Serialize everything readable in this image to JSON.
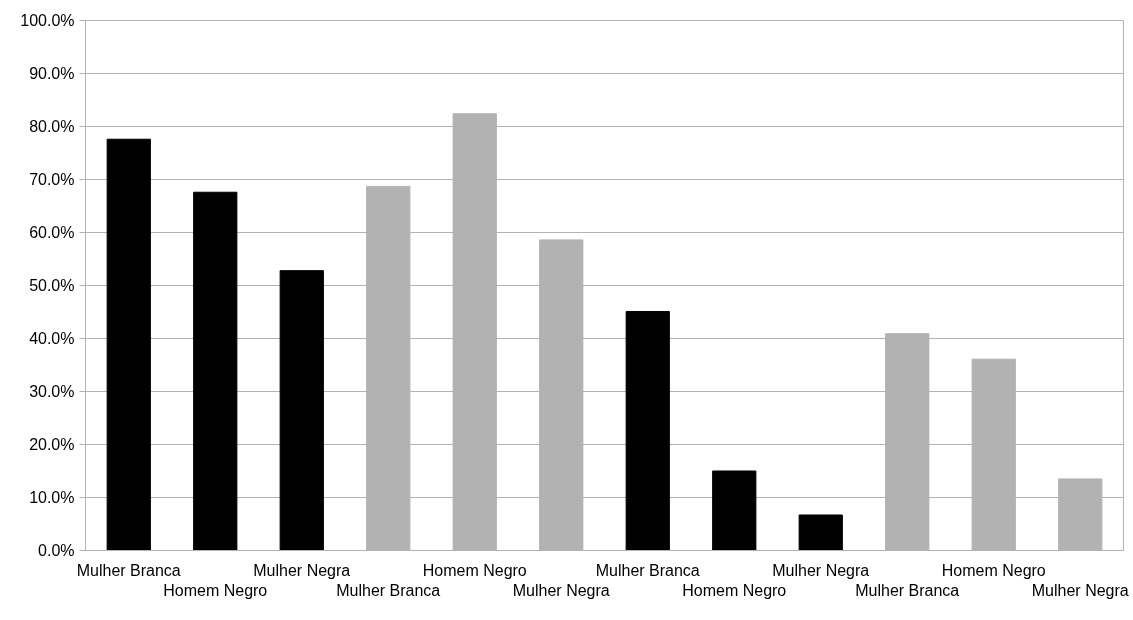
{
  "chart_data": {
    "type": "bar",
    "categories": [
      "Mulher Branca",
      "Homem Negro",
      "Mulher Negra",
      "Mulher Branca",
      "Homem Negro",
      "Mulher Negra",
      "Mulher Branca",
      "Homem Negro",
      "Mulher Negra",
      "Mulher Branca",
      "Homem Negro",
      "Mulher Negra"
    ],
    "values": [
      77.6,
      67.6,
      52.8,
      68.7,
      82.4,
      58.6,
      45.1,
      15.0,
      6.7,
      40.9,
      36.1,
      13.5
    ],
    "colors": [
      "#000000",
      "#000000",
      "#000000",
      "#b2b2b2",
      "#b2b2b2",
      "#b2b2b2",
      "#000000",
      "#000000",
      "#000000",
      "#b2b2b2",
      "#b2b2b2",
      "#b2b2b2"
    ],
    "ylim": [
      0,
      100
    ],
    "yticks": [
      {
        "value": 0,
        "label": "0.0%"
      },
      {
        "value": 10,
        "label": "10.0%"
      },
      {
        "value": 20,
        "label": "20.0%"
      },
      {
        "value": 30,
        "label": "30.0%"
      },
      {
        "value": 40,
        "label": "40.0%"
      },
      {
        "value": 50,
        "label": "50.0%"
      },
      {
        "value": 60,
        "label": "60.0%"
      },
      {
        "value": 70,
        "label": "70.0%"
      },
      {
        "value": 80,
        "label": "80.0%"
      },
      {
        "value": 90,
        "label": "90.0%"
      },
      {
        "value": 100,
        "label": "100.0%"
      }
    ],
    "grid": "y"
  }
}
